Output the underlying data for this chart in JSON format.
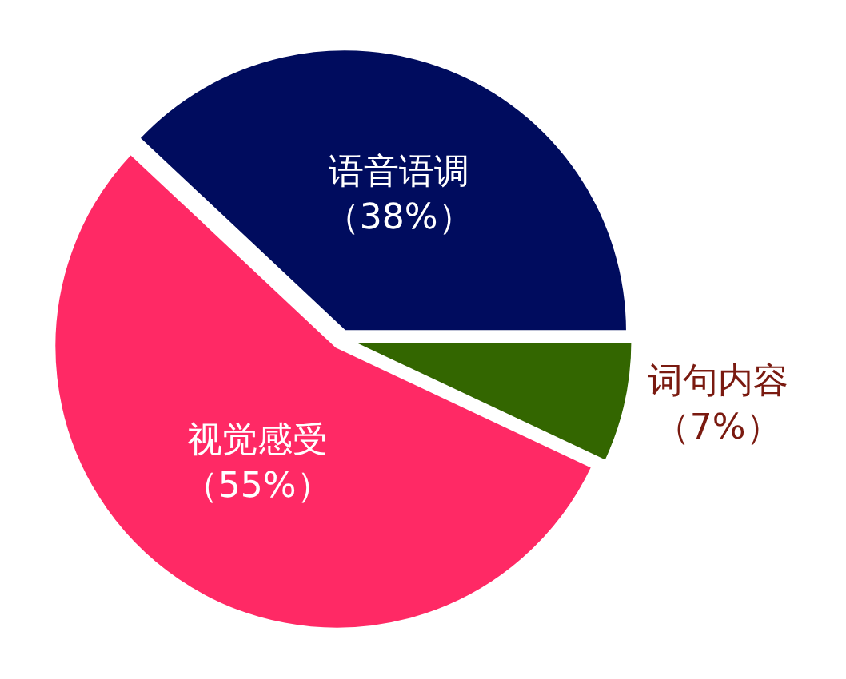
{
  "chart_data": {
    "type": "pie",
    "categories": [
      "语音语调",
      "词句内容",
      "视觉感受"
    ],
    "values": [
      38,
      7,
      55
    ],
    "colors": [
      "#000c5e",
      "#336600",
      "#ff2965"
    ],
    "value_labels": [
      "（38%）",
      "（7%）",
      "（55%）"
    ]
  }
}
